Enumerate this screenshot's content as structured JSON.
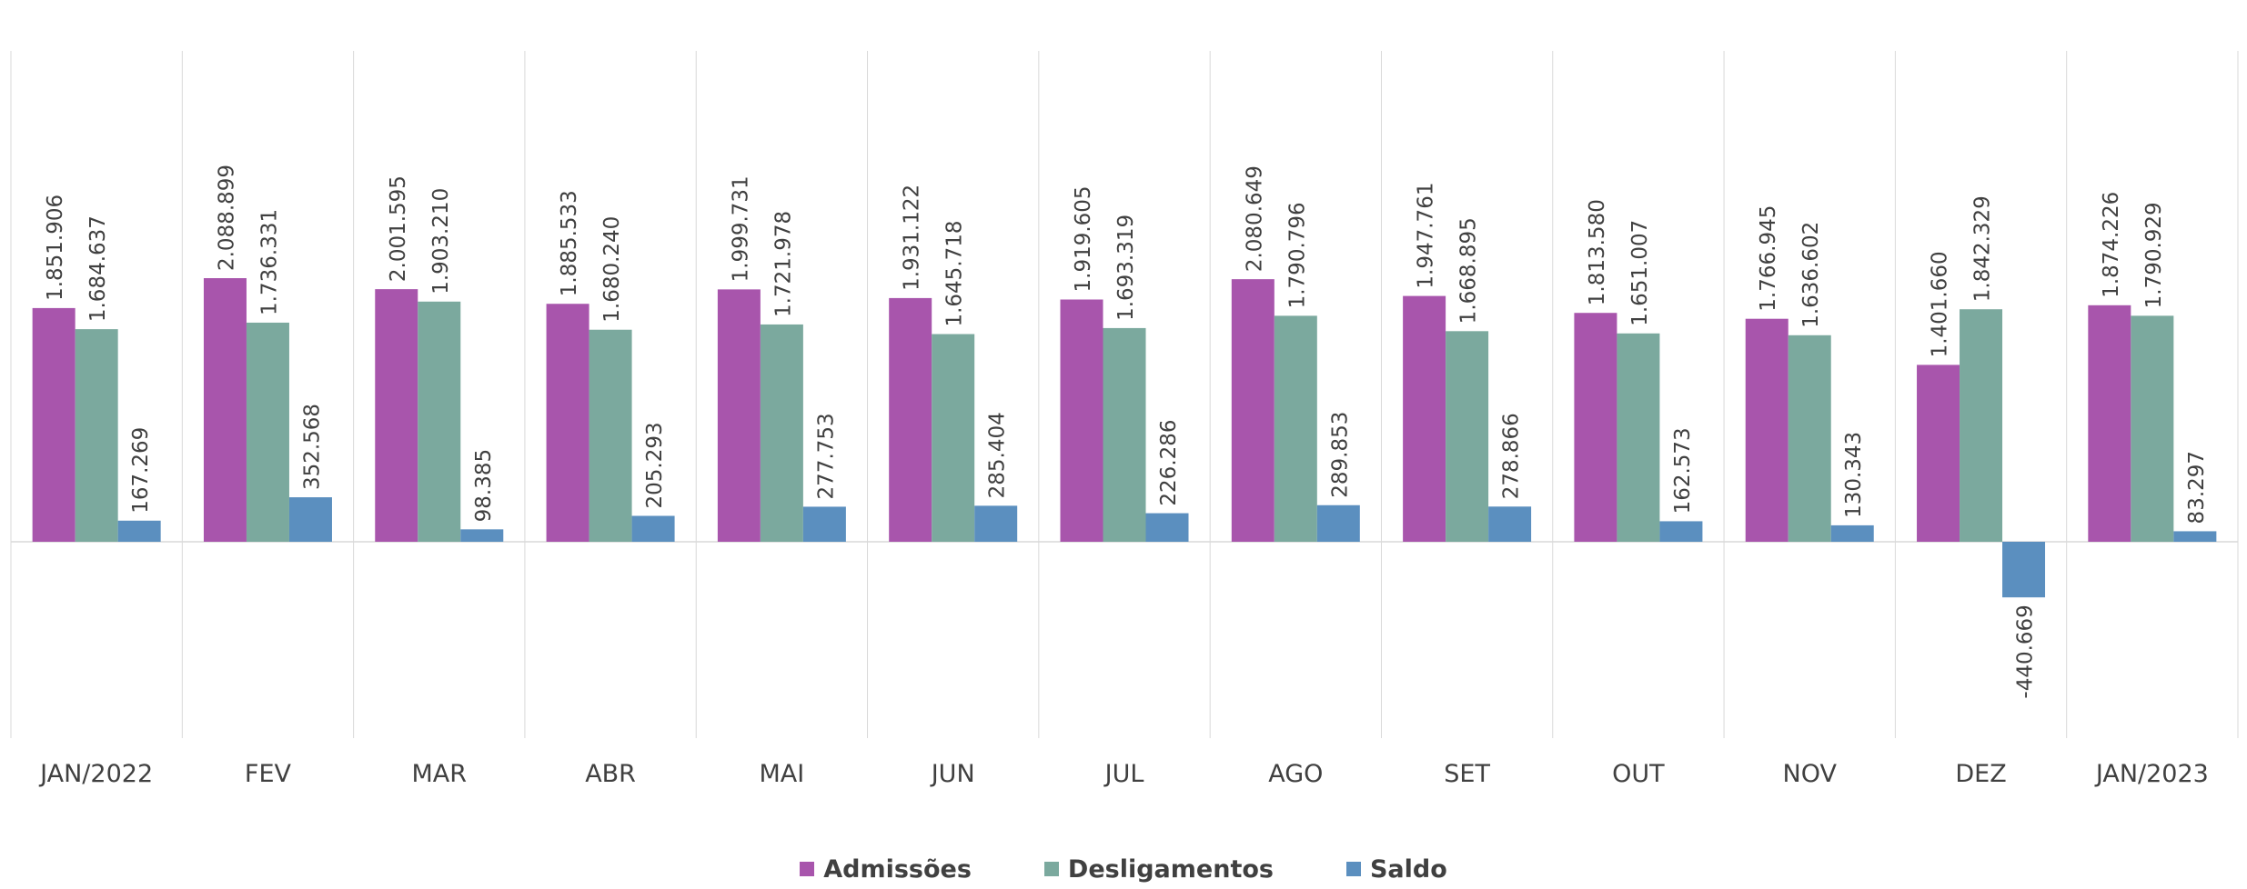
{
  "chart_data": {
    "type": "bar",
    "title": "",
    "xlabel": "",
    "ylabel": "",
    "categories": [
      "JAN/2022",
      "FEV",
      "MAR",
      "ABR",
      "MAI",
      "JUN",
      "JUL",
      "AGO",
      "SET",
      "OUT",
      "NOV",
      "DEZ",
      "JAN/2023"
    ],
    "series": [
      {
        "name": "Admissões",
        "color": "#A855AC",
        "values": [
          1851906,
          2088899,
          2001595,
          1885533,
          1999731,
          1931122,
          1919605,
          2080649,
          1947761,
          1813580,
          1766945,
          1401660,
          1874226
        ],
        "labels": [
          "1.851.906",
          "2.088.899",
          "2.001.595",
          "1.885.533",
          "1.999.731",
          "1.931.122",
          "1.919.605",
          "2.080.649",
          "1.947.761",
          "1.813.580",
          "1.766.945",
          "1.401.660",
          "1.874.226"
        ]
      },
      {
        "name": "Desligamentos",
        "color": "#7BA99E",
        "values": [
          1684637,
          1736331,
          1903210,
          1680240,
          1721978,
          1645718,
          1693319,
          1790796,
          1668895,
          1651007,
          1636602,
          1842329,
          1790929
        ],
        "labels": [
          "1.684.637",
          "1.736.331",
          "1.903.210",
          "1.680.240",
          "1.721.978",
          "1.645.718",
          "1.693.319",
          "1.790.796",
          "1.668.895",
          "1.651.007",
          "1.636.602",
          "1.842.329",
          "1.790.929"
        ]
      },
      {
        "name": "Saldo",
        "color": "#5B8FBF",
        "values": [
          167269,
          352568,
          98385,
          205293,
          277753,
          285404,
          226286,
          289853,
          278866,
          162573,
          130343,
          -440669,
          83297
        ],
        "labels": [
          "167.269",
          "352.568",
          "98.385",
          "205.293",
          "277.753",
          "285.404",
          "226.286",
          "289.853",
          "278.866",
          "162.573",
          "130.343",
          "-440.669",
          "83.297"
        ]
      }
    ],
    "grid": false,
    "legend_position": "bottom-center"
  }
}
